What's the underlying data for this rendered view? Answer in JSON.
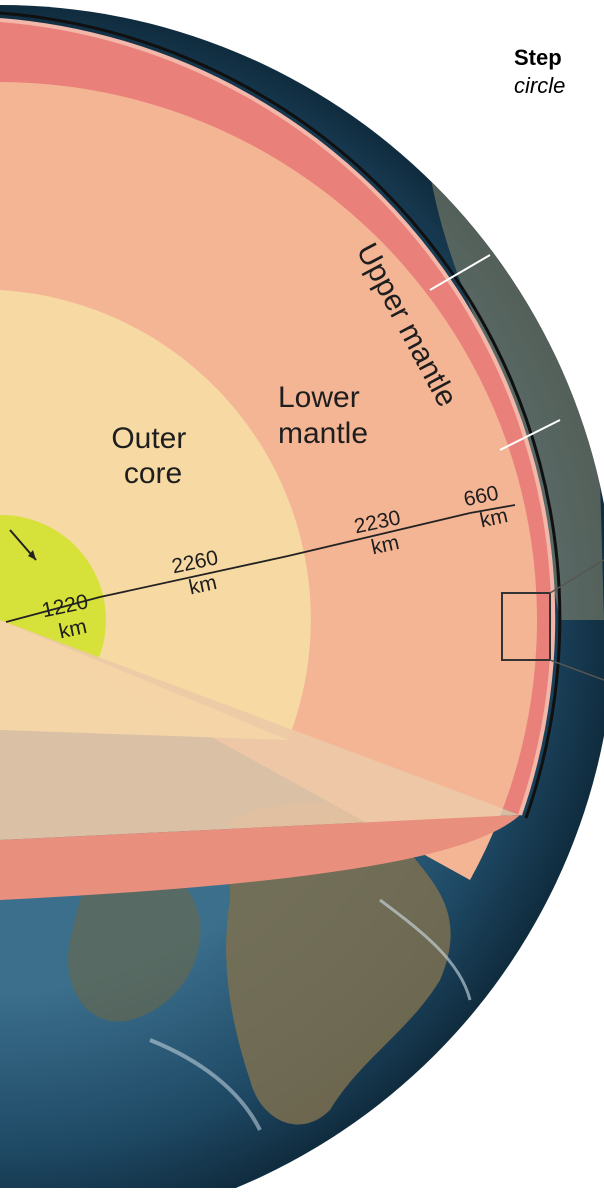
{
  "instruction": {
    "line1": "Step",
    "line2": "circle"
  },
  "layers": {
    "outer_core": [
      "Outer",
      "core"
    ],
    "lower_mantle": [
      "Lower",
      "mantle"
    ],
    "upper_mantle": "Upper mantle"
  },
  "thickness": {
    "inner_core": [
      "1220",
      "km"
    ],
    "outer_core": [
      "2260",
      "km"
    ],
    "lower_mantle": [
      "2230",
      "km"
    ],
    "upper_mantle": [
      "660",
      "km"
    ]
  },
  "colors": {
    "inner_core": "#d6e13a",
    "outer_core": "#f7d9a3",
    "lower_mantle": "#f4b595",
    "upper_mantle": "#e9817a",
    "ocean": "#2c5a78",
    "land": "#8a7a52"
  }
}
